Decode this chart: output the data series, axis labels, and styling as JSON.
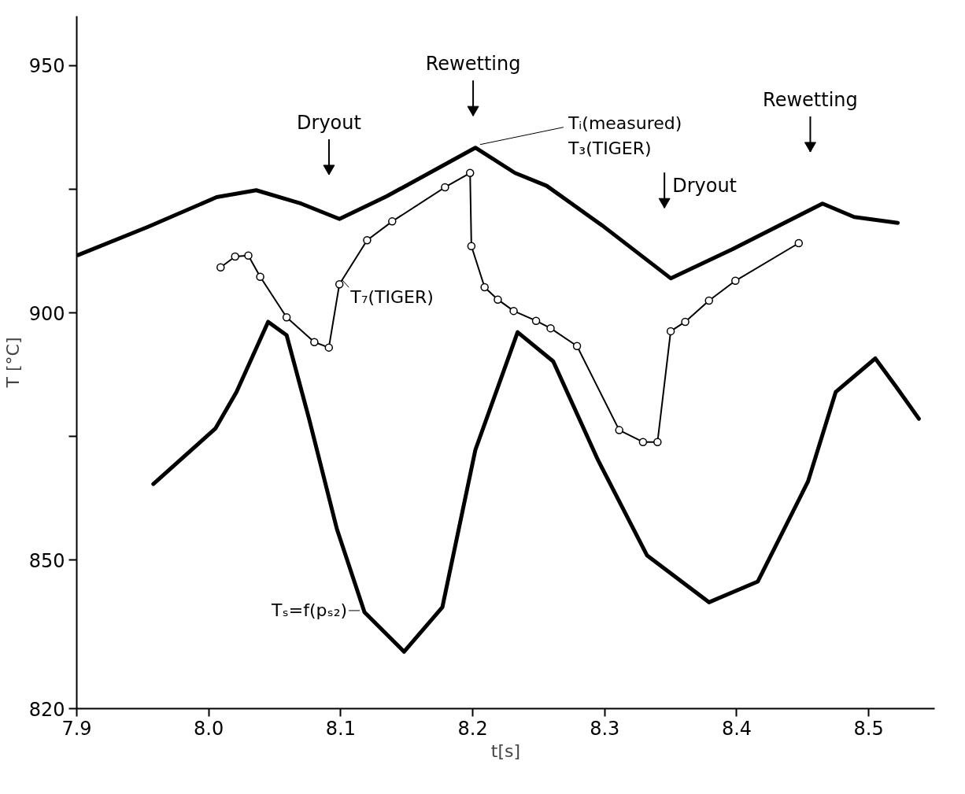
{
  "chart_data": {
    "type": "line",
    "xlabel": "t[s]",
    "ylabel": "T [°C]",
    "xlim": [
      7.9,
      8.55
    ],
    "xticks": [
      7.9,
      {
        "value": 8.0,
        "label": "8.0"
      },
      8.1,
      8.2,
      8.3,
      8.4,
      8.5
    ],
    "ylim": [
      820,
      960
    ],
    "yticks": [
      820,
      850,
      {
        "value": 875,
        "label": null
      },
      900,
      {
        "value": 925,
        "label": null
      },
      950
    ],
    "grid": false,
    "series": [
      {
        "name": "Tᵢ(measured)\nT₃(TIGER)",
        "color": "#000000",
        "marker": "none",
        "x": [
          7.901,
          7.954,
          8.006,
          8.036,
          8.07,
          8.099,
          8.135,
          8.202,
          8.232,
          8.256,
          8.298,
          8.35,
          8.397,
          8.465,
          8.489,
          8.522
        ],
        "values": [
          911.7,
          917.4,
          923.4,
          924.8,
          922.1,
          919.0,
          923.6,
          933.4,
          928.3,
          925.7,
          917.7,
          907.0,
          912.9,
          922.1,
          919.4,
          918.2
        ]
      },
      {
        "name": "T₇(TIGER)",
        "color": "#000000",
        "marker": "circle",
        "x": [
          8.009,
          8.02,
          8.03,
          8.039,
          8.059,
          8.08,
          8.091,
          8.099,
          8.12,
          8.139,
          8.179,
          8.198,
          8.199,
          8.209,
          8.219,
          8.231,
          8.248,
          8.259,
          8.279,
          8.311,
          8.329,
          8.34,
          8.35,
          8.361,
          8.379,
          8.399,
          8.447
        ],
        "values": [
          909.2,
          911.4,
          911.6,
          907.3,
          899.1,
          894.1,
          893.0,
          905.8,
          914.7,
          918.5,
          925.4,
          928.3,
          913.5,
          905.2,
          902.7,
          900.4,
          898.4,
          896.9,
          893.3,
          876.3,
          873.9,
          873.9,
          896.3,
          898.2,
          902.5,
          906.5,
          914.1
        ]
      },
      {
        "name": "Tₛ=f(pₛ₂)",
        "color": "#000000",
        "marker": "none",
        "x": [
          7.958,
          8.005,
          8.021,
          8.045,
          8.059,
          8.076,
          8.097,
          8.118,
          8.148,
          8.177,
          8.202,
          8.234,
          8.261,
          8.295,
          8.332,
          8.379,
          8.416,
          8.454,
          8.475,
          8.505,
          8.521,
          8.538
        ],
        "values": [
          865.4,
          876.6,
          884.0,
          898.2,
          895.5,
          878.6,
          856.4,
          839.5,
          831.5,
          840.5,
          872.3,
          896.1,
          890.2,
          870.2,
          851.0,
          841.5,
          845.7,
          865.9,
          884.0,
          890.8,
          885.0,
          878.6
        ]
      }
    ],
    "annotations": [
      "Dryout",
      "Rewetting",
      "Dryout",
      "Rewetting"
    ]
  }
}
